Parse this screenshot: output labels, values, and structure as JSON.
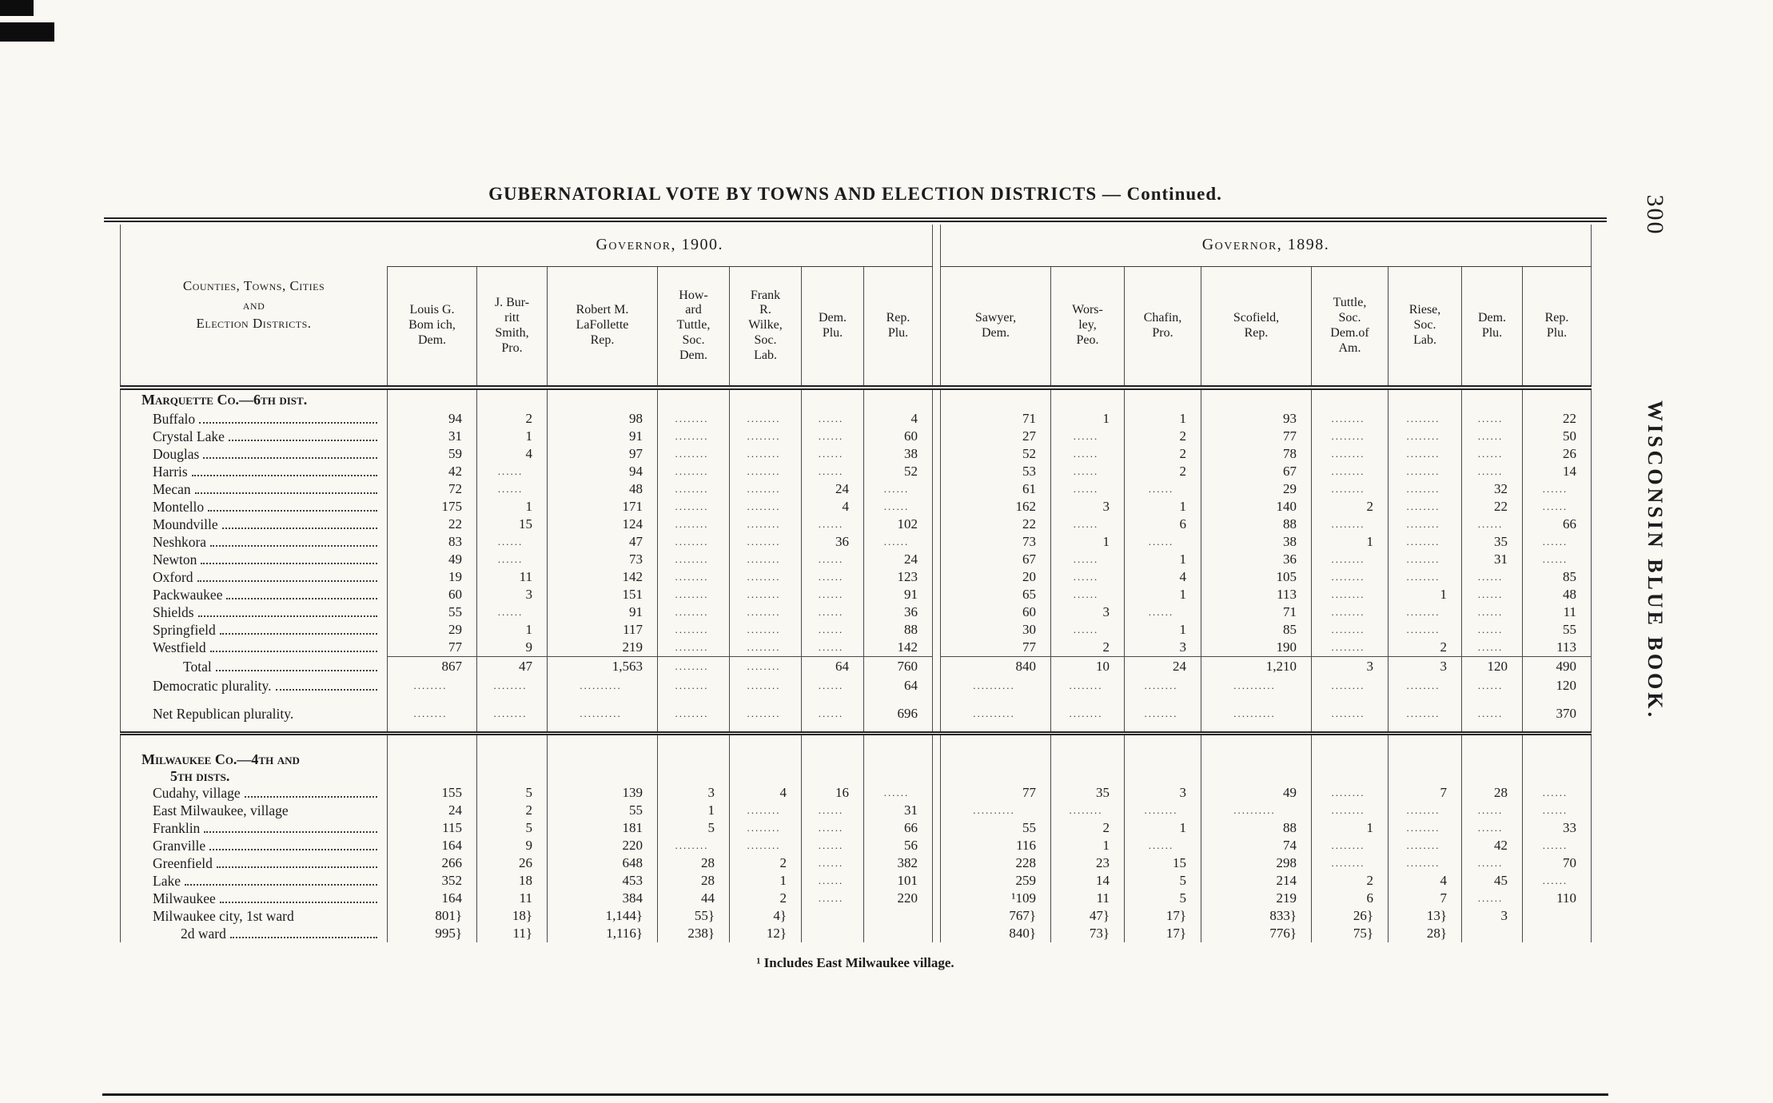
{
  "page": {
    "title": "GUBERNATORIAL VOTE BY TOWNS AND ELECTION DISTRICTS — Continued.",
    "page_number": "300",
    "side_text": "WISCONSIN BLUE BOOK.",
    "footnote": "¹ Includes East Milwaukee village."
  },
  "table": {
    "stub_header": "Counties, Towns, Cities\nand\nElection Districts.",
    "groups": [
      {
        "label": "Governor, 1900.",
        "columns": [
          "Louis G.\nBom ich,\nDem.",
          "J. Bur-\nritt\nSmith,\nPro.",
          "Robert M.\nLaFollette\nRep.",
          "How-\nard\nTuttle,\nSoc.\nDem.",
          "Frank\nR.\nWilke,\nSoc.\nLab.",
          "Dem.\nPlu.",
          "Rep.\nPlu."
        ]
      },
      {
        "label": "Governor, 1898.",
        "columns": [
          "Sawyer,\nDem.",
          "Wors-\nley,\nPeo.",
          "Chafin,\nPro.",
          "Scofield,\nRep.",
          "Tuttle,\nSoc.\nDem.of\nAm.",
          "Riese,\nSoc.\nLab.",
          "Dem.\nPlu.",
          "Rep.\nPlu."
        ]
      }
    ],
    "rows": [
      {
        "t": "sec",
        "label": "Marquette Co.—6th dist."
      },
      {
        "t": "d",
        "lead": true,
        "label": "Buffalo",
        "c": [
          "94",
          "2",
          "98",
          "........",
          "........",
          "......",
          "4",
          "71",
          "1",
          "1",
          "93",
          "........",
          "........",
          "......",
          "22"
        ]
      },
      {
        "t": "d",
        "lead": true,
        "label": "Crystal Lake",
        "c": [
          "31",
          "1",
          "91",
          "........",
          "........",
          "......",
          "60",
          "27",
          "......",
          "2",
          "77",
          "........",
          "........",
          "......",
          "50"
        ]
      },
      {
        "t": "d",
        "lead": true,
        "label": "Douglas",
        "c": [
          "59",
          "4",
          "97",
          "........",
          "........",
          "......",
          "38",
          "52",
          "......",
          "2",
          "78",
          "........",
          "........",
          "......",
          "26"
        ]
      },
      {
        "t": "d",
        "lead": true,
        "label": "Harris",
        "c": [
          "42",
          "......",
          "94",
          "........",
          "........",
          "......",
          "52",
          "53",
          "......",
          "2",
          "67",
          "........",
          "........",
          "......",
          "14"
        ]
      },
      {
        "t": "d",
        "lead": true,
        "label": "Mecan",
        "c": [
          "72",
          "......",
          "48",
          "........",
          "........",
          "24",
          "......",
          "61",
          "......",
          "......",
          "29",
          "........",
          "........",
          "32",
          "......"
        ]
      },
      {
        "t": "d",
        "lead": true,
        "label": "Montello",
        "c": [
          "175",
          "1",
          "171",
          "........",
          "........",
          "4",
          "......",
          "162",
          "3",
          "1",
          "140",
          "2",
          "........",
          "22",
          "......"
        ]
      },
      {
        "t": "d",
        "lead": true,
        "label": "Moundville",
        "c": [
          "22",
          "15",
          "124",
          "........",
          "........",
          "......",
          "102",
          "22",
          "......",
          "6",
          "88",
          "........",
          "........",
          "......",
          "66"
        ]
      },
      {
        "t": "d",
        "lead": true,
        "label": "Neshkora",
        "c": [
          "83",
          "......",
          "47",
          "........",
          "........",
          "36",
          "......",
          "73",
          "1",
          "......",
          "38",
          "1",
          "........",
          "35",
          "......"
        ]
      },
      {
        "t": "d",
        "lead": true,
        "label": "Newton",
        "c": [
          "49",
          "......",
          "73",
          "........",
          "........",
          "......",
          "24",
          "67",
          "......",
          "1",
          "36",
          "........",
          "........",
          "31",
          "......"
        ]
      },
      {
        "t": "d",
        "lead": true,
        "label": "Oxford",
        "c": [
          "19",
          "11",
          "142",
          "........",
          "........",
          "......",
          "123",
          "20",
          "......",
          "4",
          "105",
          "........",
          "........",
          "......",
          "85"
        ]
      },
      {
        "t": "d",
        "lead": true,
        "label": "Packwaukee",
        "c": [
          "60",
          "3",
          "151",
          "........",
          "........",
          "......",
          "91",
          "65",
          "......",
          "1",
          "113",
          "........",
          "1",
          "......",
          "48"
        ]
      },
      {
        "t": "d",
        "lead": true,
        "label": "Shields",
        "c": [
          "55",
          "......",
          "91",
          "........",
          "........",
          "......",
          "36",
          "60",
          "3",
          "......",
          "71",
          "........",
          "........",
          "......",
          "11"
        ]
      },
      {
        "t": "d",
        "lead": true,
        "label": "Springfield",
        "c": [
          "29",
          "1",
          "117",
          "........",
          "........",
          "......",
          "88",
          "30",
          "......",
          "1",
          "85",
          "........",
          "........",
          "......",
          "55"
        ]
      },
      {
        "t": "d",
        "lead": true,
        "label": "Westfield",
        "c": [
          "77",
          "9",
          "219",
          "........",
          "........",
          "......",
          "142",
          "77",
          "2",
          "3",
          "190",
          "........",
          "2",
          "......",
          "113"
        ]
      },
      {
        "t": "tot",
        "lead": true,
        "label": "Total",
        "c": [
          "867",
          "47",
          "1,563",
          "........",
          "........",
          "64",
          "760",
          "840",
          "10",
          "24",
          "1,210",
          "3",
          "3",
          "120",
          "490"
        ]
      },
      {
        "t": "d",
        "lead": true,
        "label": "Democratic plurality.",
        "c": [
          "........",
          "........",
          "..........",
          "........",
          "........",
          "......",
          "64",
          "..........",
          "........",
          "........",
          "..........",
          "........",
          "........",
          "......",
          "120"
        ]
      },
      {
        "t": "gap"
      },
      {
        "t": "d",
        "lead": false,
        "label": "Net Republican plurality.",
        "c": [
          "........",
          "........",
          "..........",
          "........",
          "........",
          "......",
          "696",
          "..........",
          "........",
          "........",
          "..........",
          "........",
          "........",
          "......",
          "370"
        ]
      },
      {
        "t": "gap"
      },
      {
        "t": "rule"
      },
      {
        "t": "gap"
      },
      {
        "t": "sec",
        "label": "Milwaukee Co.—4th and\n        5th dists."
      },
      {
        "t": "d",
        "lead": true,
        "label": "Cudahy, village",
        "c": [
          "155",
          "5",
          "139",
          "3",
          "4",
          "16",
          "......",
          "77",
          "35",
          "3",
          "49",
          "........",
          "7",
          "28",
          "......"
        ]
      },
      {
        "t": "d",
        "lead": false,
        "label": "East Milwaukee, village",
        "c": [
          "24",
          "2",
          "55",
          "1",
          "........",
          "......",
          "31",
          "..........",
          "........",
          "........",
          "..........",
          "........",
          "........",
          "......",
          "......"
        ]
      },
      {
        "t": "d",
        "lead": true,
        "label": "Franklin",
        "c": [
          "115",
          "5",
          "181",
          "5",
          "........",
          "......",
          "66",
          "55",
          "2",
          "1",
          "88",
          "1",
          "........",
          "......",
          "33"
        ]
      },
      {
        "t": "d",
        "lead": true,
        "label": "Granville",
        "c": [
          "164",
          "9",
          "220",
          "........",
          "........",
          "......",
          "56",
          "116",
          "1",
          "......",
          "74",
          "........",
          "........",
          "42",
          "......"
        ]
      },
      {
        "t": "d",
        "lead": true,
        "label": "Greenfield",
        "c": [
          "266",
          "26",
          "648",
          "28",
          "2",
          "......",
          "382",
          "228",
          "23",
          "15",
          "298",
          "........",
          "........",
          "......",
          "70"
        ]
      },
      {
        "t": "d",
        "lead": true,
        "label": "Lake",
        "c": [
          "352",
          "18",
          "453",
          "28",
          "1",
          "......",
          "101",
          "259",
          "14",
          "5",
          "214",
          "2",
          "4",
          "45",
          "......"
        ]
      },
      {
        "t": "d",
        "lead": true,
        "label": "Milwaukee",
        "c": [
          "164",
          "11",
          "384",
          "44",
          "2",
          "......",
          "220",
          "¹109",
          "11",
          "5",
          "219",
          "6",
          "7",
          "......",
          "110"
        ]
      },
      {
        "t": "d",
        "lead": false,
        "label": "Milwaukee city, 1st ward",
        "c": [
          "801}",
          "18}",
          "1,144}",
          "55}",
          "4}",
          "",
          "",
          "767}",
          "47}",
          "17}",
          "833}",
          "26}",
          "13}",
          "3",
          ""
        ]
      },
      {
        "t": "d",
        "lead": true,
        "label": "        2d ward",
        "c": [
          "995}",
          "11}",
          "1,116}",
          "238}",
          "12}",
          "",
          "",
          "840}",
          "73}",
          "17}",
          "776}",
          "75}",
          "28}",
          "",
          ""
        ]
      }
    ]
  }
}
